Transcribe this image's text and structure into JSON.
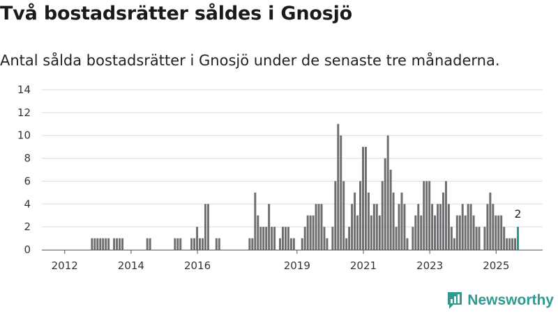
{
  "header": {
    "title": "Två bostadsrätter såldes i Gnosjö",
    "subtitle": "Antal sålda bostadsrätter i Gnosjö under de senaste tre månaderna."
  },
  "brand": {
    "name": "Newsworthy",
    "icon": "newsworthy-logo-icon"
  },
  "colors": {
    "bar": "#6e6e71",
    "highlight": "#1f9c95",
    "grid": "#dddddd",
    "axis": "#555555"
  },
  "chart_data": {
    "type": "bar",
    "title": "Två bostadsrätter såldes i Gnosjö",
    "subtitle": "Antal sålda bostadsrätter i Gnosjö under de senaste tre månaderna.",
    "xlabel": "",
    "ylabel": "",
    "unit": "rolling three-month count, monthly",
    "start": [
      2011,
      6
    ],
    "ylim": [
      0,
      14
    ],
    "yticks": [
      0,
      2,
      4,
      6,
      8,
      10,
      12,
      14
    ],
    "xticks": [
      2012,
      2014,
      2016,
      2019,
      2021,
      2023,
      2025
    ],
    "values": [
      0,
      0,
      0,
      0,
      0,
      0,
      0,
      0,
      0,
      0,
      0,
      0,
      0,
      0,
      0,
      0,
      0,
      1,
      1,
      1,
      1,
      1,
      1,
      1,
      0,
      1,
      1,
      1,
      1,
      0,
      0,
      0,
      0,
      0,
      0,
      0,
      0,
      1,
      1,
      0,
      0,
      0,
      0,
      0,
      0,
      0,
      0,
      1,
      1,
      1,
      0,
      0,
      0,
      1,
      1,
      2,
      1,
      1,
      4,
      4,
      0,
      0,
      1,
      1,
      0,
      0,
      0,
      0,
      0,
      0,
      0,
      0,
      0,
      0,
      1,
      1,
      5,
      3,
      2,
      2,
      2,
      4,
      2,
      2,
      0,
      1,
      2,
      2,
      2,
      1,
      1,
      0,
      0,
      1,
      2,
      3,
      3,
      3,
      4,
      4,
      4,
      2,
      1,
      0,
      2,
      6,
      11,
      10,
      6,
      1,
      2,
      4,
      5,
      3,
      6,
      9,
      9,
      5,
      3,
      4,
      4,
      3,
      6,
      8,
      10,
      7,
      5,
      2,
      4,
      5,
      4,
      1,
      0,
      2,
      3,
      4,
      3,
      6,
      6,
      6,
      4,
      3,
      4,
      4,
      5,
      6,
      4,
      2,
      1,
      3,
      3,
      4,
      3,
      4,
      4,
      3,
      2,
      2,
      0,
      2,
      4,
      5,
      4,
      3,
      3,
      3,
      2,
      1,
      1,
      1,
      1,
      2
    ],
    "highlight": {
      "index": "last",
      "label": "2"
    }
  }
}
